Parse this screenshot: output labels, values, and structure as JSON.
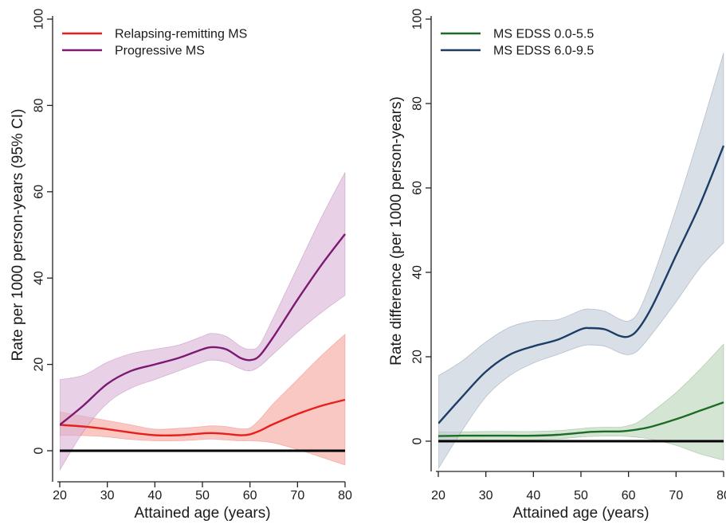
{
  "chart_data": [
    {
      "type": "line",
      "xlabel": "Attained age (years)",
      "ylabel": "Rate per 1000 person-years (95% CI)",
      "xlim": [
        20,
        80
      ],
      "ylim": [
        0,
        100
      ],
      "x_ticks": [
        20,
        30,
        40,
        50,
        60,
        70,
        80
      ],
      "y_ticks": [
        0,
        20,
        40,
        60,
        80,
        100
      ],
      "reference_line": 0,
      "legend_position": "top-left",
      "x": [
        20,
        25,
        30,
        35,
        40,
        45,
        50,
        52,
        55,
        58,
        60,
        62,
        65,
        70,
        75,
        80
      ],
      "series": [
        {
          "name": "Relapsing-remitting MS",
          "color": "#e8201c",
          "band_color": "#f5a39b",
          "values": [
            6,
            5.6,
            5,
            4.2,
            3.6,
            3.6,
            4,
            4.1,
            3.9,
            3.6,
            3.8,
            4.6,
            6.2,
            8.5,
            10.4,
            11.8
          ],
          "lower": [
            3.5,
            3.5,
            3.2,
            2.6,
            2.3,
            2.3,
            2.6,
            2.7,
            2.5,
            2.3,
            2.3,
            2.2,
            1.8,
            0.3,
            -1.5,
            -3.3
          ],
          "upper": [
            9,
            8,
            7,
            6,
            5,
            5.2,
            5.6,
            5.8,
            5.6,
            5.1,
            5.3,
            7.2,
            11,
            16.5,
            22,
            27
          ]
        },
        {
          "name": "Progressive MS",
          "color": "#7b1a72",
          "band_color": "#d9b2d6",
          "values": [
            6,
            10.5,
            15.5,
            18.5,
            20,
            21.5,
            23.5,
            24,
            23.5,
            21.5,
            21,
            22,
            26.5,
            35,
            43,
            50.2
          ],
          "lower": [
            -4.5,
            4.5,
            11,
            14.5,
            16.5,
            18.5,
            20.5,
            21,
            20.5,
            19,
            18.5,
            19.5,
            22.5,
            27.5,
            32,
            36
          ],
          "upper": [
            16.5,
            17.5,
            20.5,
            22.5,
            23.5,
            24.5,
            26.5,
            27.2,
            26.5,
            24.2,
            23.5,
            24.5,
            31,
            42.5,
            54,
            64.5
          ]
        }
      ]
    },
    {
      "type": "line",
      "xlabel": "Attained age (years)",
      "ylabel": "Rate difference (per 1000 person-years)",
      "xlim": [
        20,
        80
      ],
      "ylim": [
        0,
        100
      ],
      "x_ticks": [
        20,
        30,
        40,
        50,
        60,
        70,
        80
      ],
      "y_ticks": [
        0,
        20,
        40,
        60,
        80,
        100
      ],
      "reference_line": 0,
      "legend_position": "top-left",
      "x": [
        20,
        25,
        30,
        35,
        40,
        45,
        50,
        52,
        55,
        58,
        60,
        62,
        65,
        70,
        75,
        80
      ],
      "series": [
        {
          "name": "MS EDSS 0.0-5.5",
          "color": "#1d6b26",
          "band_color": "#b9d3b5",
          "values": [
            1.2,
            1.3,
            1.3,
            1.3,
            1.3,
            1.5,
            2,
            2.2,
            2.3,
            2.3,
            2.5,
            2.8,
            3.5,
            5.2,
            7.2,
            9.2
          ],
          "lower": [
            0.3,
            0.4,
            0.3,
            0.3,
            0.3,
            0.5,
            1,
            1.1,
            1.2,
            1.2,
            1.1,
            0.9,
            0.4,
            -1,
            -3,
            -4.5
          ],
          "upper": [
            2.2,
            2.2,
            2.3,
            2.3,
            2.3,
            2.5,
            3.0,
            3.2,
            3.3,
            3.3,
            3.7,
            4.5,
            7,
            11.5,
            17,
            23
          ]
        },
        {
          "name": "MS EDSS 6.0-9.5",
          "color": "#1b3d66",
          "band_color": "#c0cad6",
          "values": [
            4.2,
            10.5,
            16.5,
            20.5,
            22.5,
            24,
            26.5,
            26.8,
            26.5,
            25,
            24.8,
            26.5,
            32,
            44,
            56,
            70
          ],
          "lower": [
            -6.5,
            2.5,
            10.5,
            15.5,
            18.5,
            20.5,
            22.5,
            22.8,
            22.5,
            21,
            20.5,
            21.5,
            25.5,
            33,
            41,
            47
          ],
          "upper": [
            15.5,
            19,
            23.5,
            27,
            28.5,
            28.8,
            31,
            31.3,
            30.8,
            29,
            28.5,
            30.5,
            38.5,
            55,
            73,
            92
          ]
        }
      ]
    }
  ]
}
